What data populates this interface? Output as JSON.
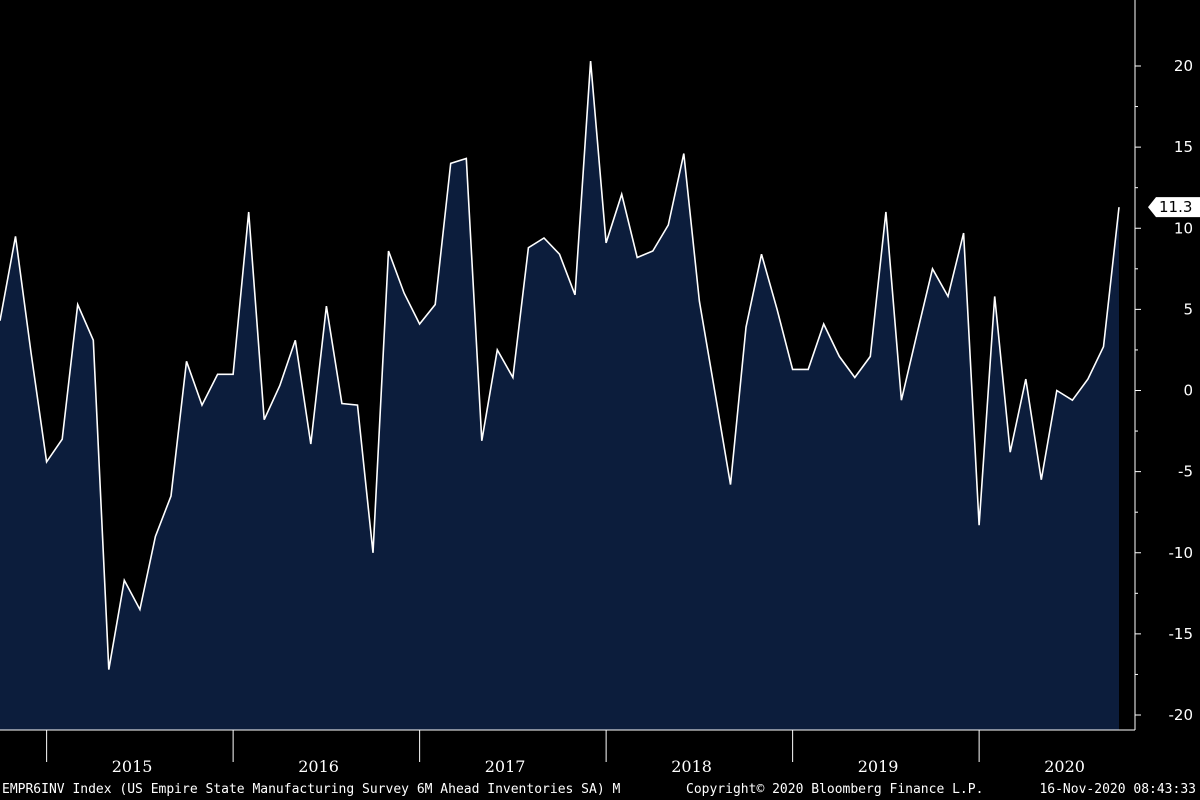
{
  "chart_data": {
    "type": "area",
    "title": "",
    "xlabel": "",
    "ylabel": "",
    "frequency": "M",
    "x_start": "2014-10",
    "x_end": "2020-11",
    "x_tick_labels": [
      "2015",
      "2016",
      "2017",
      "2018",
      "2019",
      "2020"
    ],
    "y_ticks": [
      20,
      15,
      10,
      5,
      0,
      -5,
      -10,
      -15,
      -20
    ],
    "ylim": [
      -21,
      24
    ],
    "grid": false,
    "legend": "none",
    "series": [
      {
        "name": "EMPR6INV Index",
        "color": "#ffffff",
        "fill": "#0c1d3c",
        "values": [
          4.3,
          9.5,
          2.3,
          -4.4,
          -3.0,
          5.3,
          3.1,
          -17.2,
          -11.7,
          -13.5,
          -9.0,
          -6.5,
          1.8,
          -0.9,
          1.0,
          1.0,
          11.0,
          -1.8,
          0.3,
          3.1,
          -3.3,
          5.2,
          -0.8,
          -0.9,
          -10.0,
          8.6,
          6.0,
          4.1,
          5.3,
          14.0,
          14.3,
          -3.1,
          2.5,
          0.8,
          8.8,
          9.4,
          8.4,
          5.9,
          20.3,
          9.1,
          12.1,
          8.2,
          8.6,
          10.2,
          14.6,
          5.5,
          -0.1,
          -5.8,
          3.9,
          8.4,
          5.0,
          1.3,
          1.3,
          4.1,
          2.1,
          0.8,
          2.1,
          11.0,
          -0.6,
          3.5,
          7.5,
          5.8,
          9.7,
          -8.3,
          5.8,
          -3.8,
          0.7,
          -5.5,
          0.0,
          -0.6,
          0.7,
          2.7,
          11.3
        ]
      }
    ],
    "last_value_label": "11.3"
  },
  "footer": {
    "ticker": "EMPR6INV Index (US Empire State Manufacturing Survey 6M Ahead Inventories SA)  M",
    "copyright": "Copyright© 2020 Bloomberg Finance L.P.",
    "timestamp": "16-Nov-2020 08:43:33"
  },
  "colors": {
    "background": "#000000",
    "area_fill": "#0c1d3c",
    "line": "#ffffff",
    "axis": "#ffffff"
  }
}
